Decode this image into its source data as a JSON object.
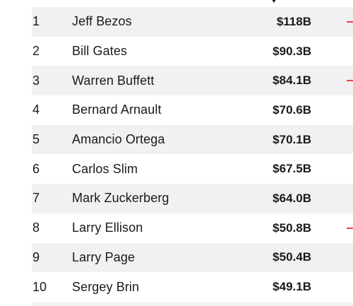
{
  "rows": [
    {
      "rank": "1",
      "name": "Jeff Bezos",
      "worth": "$118B",
      "trend": true
    },
    {
      "rank": "2",
      "name": "Bill Gates",
      "worth": "$90.3B",
      "trend": false
    },
    {
      "rank": "3",
      "name": "Warren Buffett",
      "worth": "$84.1B",
      "trend": true
    },
    {
      "rank": "4",
      "name": "Bernard Arnault",
      "worth": "$70.6B",
      "trend": false
    },
    {
      "rank": "5",
      "name": "Amancio Ortega",
      "worth": "$70.1B",
      "trend": false
    },
    {
      "rank": "6",
      "name": "Carlos Slim",
      "worth": "$67.5B",
      "trend": false
    },
    {
      "rank": "7",
      "name": "Mark Zuckerberg",
      "worth": "$64.0B",
      "trend": false
    },
    {
      "rank": "8",
      "name": "Larry Ellison",
      "worth": "$50.8B",
      "trend": true
    },
    {
      "rank": "9",
      "name": "Larry Page",
      "worth": "$50.4B",
      "trend": false
    },
    {
      "rank": "10",
      "name": "Sergey Brin",
      "worth": "$49.1B",
      "trend": false
    }
  ],
  "colors": {
    "row_shade": "#f1f1f1",
    "text": "#1a1a1a",
    "trend_down": "#e8414e"
  }
}
